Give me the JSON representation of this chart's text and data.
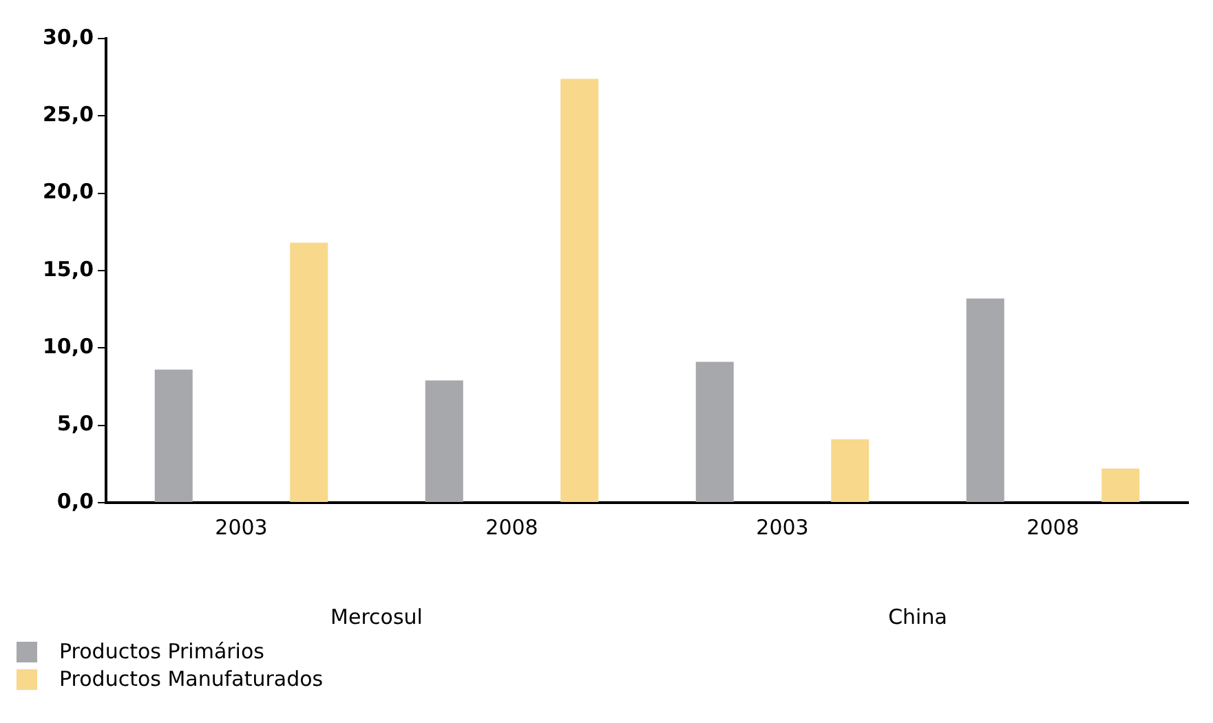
{
  "chart_data": {
    "type": "bar",
    "categories": [
      "2003",
      "2008",
      "2003",
      "2008"
    ],
    "annotations": [
      "Mercosul",
      "China"
    ],
    "series": [
      {
        "name": "Productos Primários",
        "color": "#a7a8ab",
        "values": [
          8.6,
          7.9,
          9.1,
          13.2
        ]
      },
      {
        "name": "Productos Manufaturados",
        "color": "#f8d88a",
        "values": [
          16.8,
          27.4,
          4.1,
          2.2
        ]
      }
    ],
    "ylim": [
      0,
      30
    ],
    "yticks": [
      {
        "value": 0,
        "label": "0,0"
      },
      {
        "value": 5,
        "label": "5,0"
      },
      {
        "value": 10,
        "label": "10,0"
      },
      {
        "value": 15,
        "label": "15,0"
      },
      {
        "value": 20,
        "label": "20,0"
      },
      {
        "value": 25,
        "label": "25,0"
      },
      {
        "value": 30,
        "label": "30,0"
      }
    ],
    "grid": false,
    "legend": "bottom left"
  }
}
